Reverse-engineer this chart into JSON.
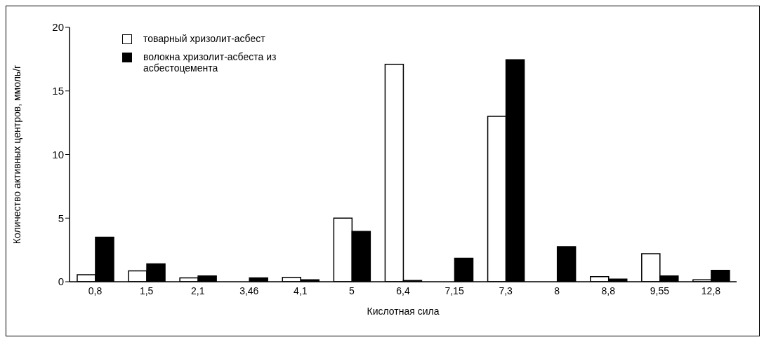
{
  "chart_data": {
    "type": "bar",
    "xlabel": "Кислотная сила",
    "ylabel": "Количество активных центров, ммоль/г",
    "categories": [
      "0,8",
      "1,5",
      "2,1",
      "3,46",
      "4,1",
      "5",
      "6,4",
      "7,15",
      "7,3",
      "8",
      "8,8",
      "9,55",
      "12,8"
    ],
    "series": [
      {
        "name": "товарный хризолит-асбест",
        "color": "#ffffff",
        "values": [
          0.55,
          0.85,
          0.3,
          0,
          0.35,
          5,
          17.1,
          0,
          13,
          0,
          0.4,
          2.2,
          0.15
        ]
      },
      {
        "name": "волокна хризолит-асбеста из асбестоцемента",
        "color": "#000000",
        "values": [
          3.5,
          1.4,
          0.45,
          0.3,
          0.15,
          3.95,
          0.1,
          1.85,
          17.45,
          2.75,
          0.2,
          0.45,
          0.9
        ]
      }
    ],
    "ylim": [
      0,
      20
    ],
    "yticks": [
      0,
      5,
      10,
      15,
      20
    ],
    "legend": "top left"
  }
}
